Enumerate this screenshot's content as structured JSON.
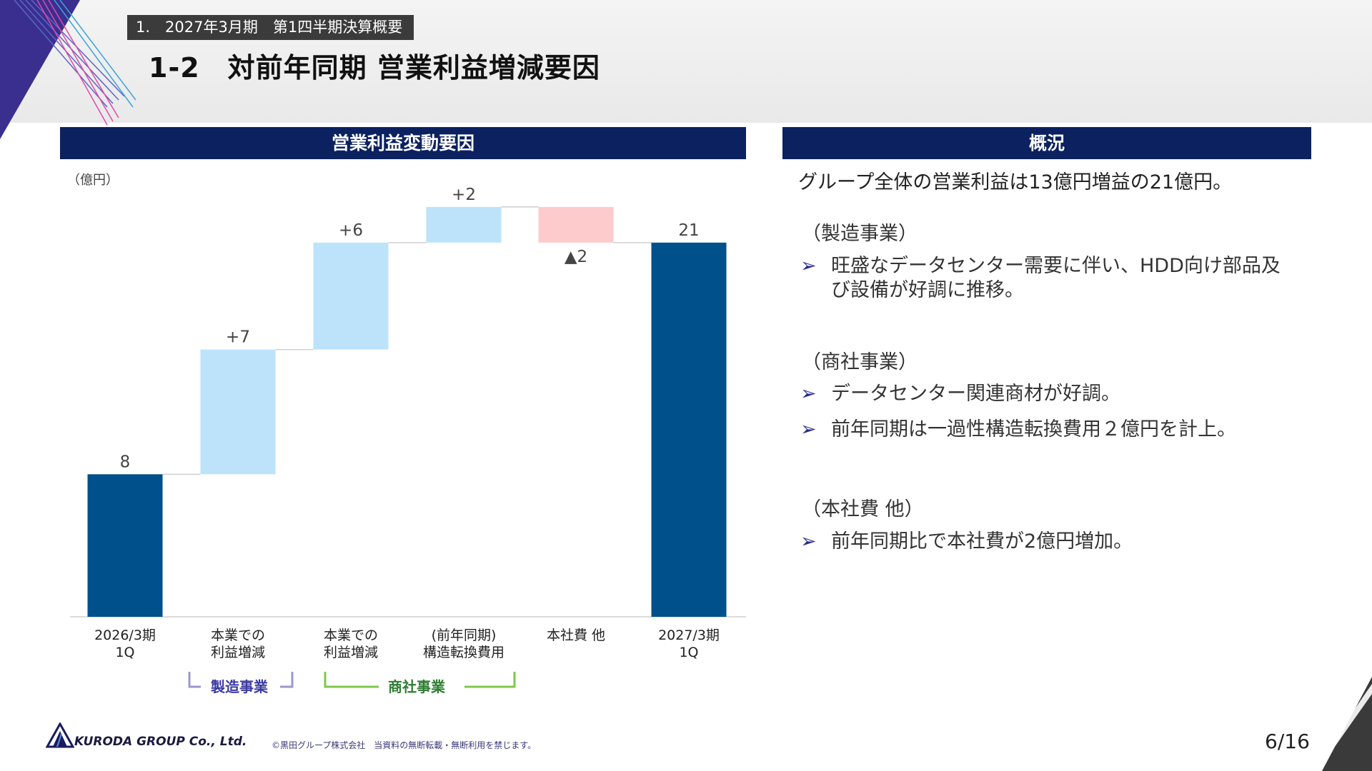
{
  "header": {
    "section": "1.　2027年3月期　第1四半期決算概要",
    "title": "1-2　対前年同期 営業利益増減要因"
  },
  "chart_panel": {
    "header": "営業利益変動要因",
    "unit": "（億円）"
  },
  "chart_data": {
    "type": "waterfall",
    "categories": [
      "2026/3期\n1Q",
      "本業での\n利益増減",
      "本業での\n利益増減",
      "(前年同期)\n構造転換費用",
      "本社費 他",
      "2027/3期\n1Q"
    ],
    "values": [
      8,
      7,
      6,
      2,
      -2,
      21
    ],
    "kinds": [
      "total",
      "increase",
      "increase",
      "increase",
      "decrease",
      "total"
    ],
    "value_labels": [
      "8",
      "+7",
      "+6",
      "+2",
      "▲2",
      "21"
    ],
    "ylim": [
      0,
      25
    ],
    "groups": [
      {
        "label": "製造事業",
        "categories": [
          1
        ]
      },
      {
        "label": "商社事業",
        "categories": [
          2,
          3
        ]
      }
    ],
    "colors": {
      "total": "#00508c",
      "increase": "#bde3fb",
      "decrease": "#fdcbcb",
      "mfg_bracket": "#9b98cf",
      "trade_bracket": "#7fc84a"
    }
  },
  "summary": {
    "header": "概況",
    "lead": "グループ全体の営業利益は13億円増益の21億円。",
    "sections": [
      {
        "title": "（製造事業）",
        "bullets": [
          "旺盛なデータセンター需要に伴い、HDD向け部品及び設備が好調に推移。"
        ]
      },
      {
        "title": "（商社事業）",
        "bullets": [
          "データセンター関連商材が好調。",
          "前年同期は一過性構造転換費用２億円を計上。"
        ]
      },
      {
        "title": "（本社費 他）",
        "bullets": [
          "前年同期比で本社費が2億円増加。"
        ]
      }
    ],
    "bullet_marker": "➢"
  },
  "footer": {
    "logo_text": "KURODA GROUP Co., Ltd.",
    "copyright": "©黒田グループ株式会社　当資料の無断転載・無断利用を禁じます。",
    "page": "6/16"
  }
}
